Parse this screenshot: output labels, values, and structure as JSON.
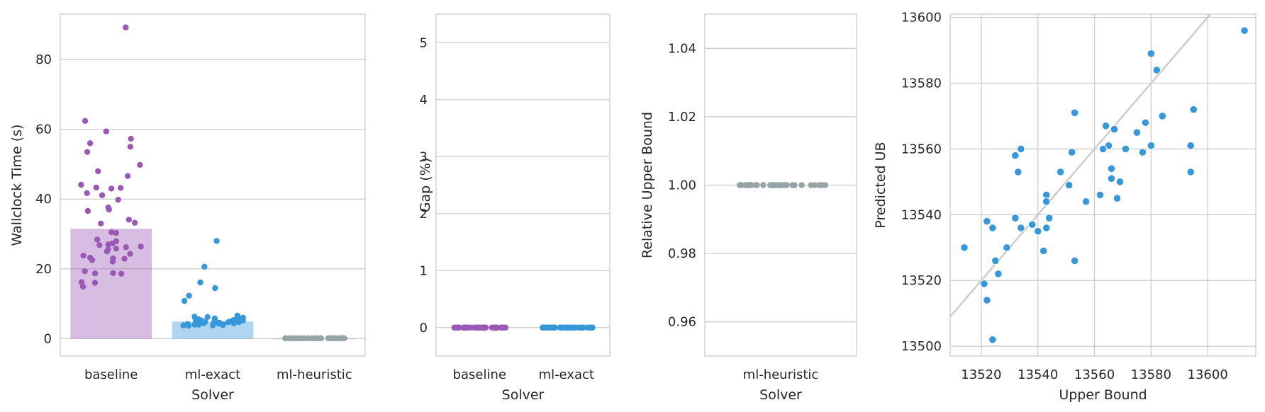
{
  "colors": {
    "baseline": "#9b59b6",
    "ml_exact": "#3498db",
    "ml_heuristic": "#95a5a6",
    "grid": "#cccccc",
    "identity_line": "#cccccc"
  },
  "chart_data": [
    {
      "type": "bar",
      "overlay": "strip",
      "categories": [
        "baseline",
        "ml-exact",
        "ml-heuristic"
      ],
      "bar_values": [
        31.5,
        4.9,
        0.1
      ],
      "xlabel": "Solver",
      "ylabel": "Wallclock Time (s)",
      "ylim": [
        -5,
        93
      ],
      "yticks": [
        0,
        20,
        40,
        60,
        80
      ],
      "grid": "horizontal",
      "points": [
        [
          89.2,
          62.4,
          59.4,
          57.3,
          56.0,
          55.0,
          53.5,
          49.8,
          48.0,
          46.6,
          44.1,
          43.3,
          43.2,
          43.0,
          41.7,
          41.1,
          39.8,
          37.6,
          37.0,
          36.6,
          34.1,
          33.2,
          33.0,
          30.5,
          30.3,
          28.4,
          27.9,
          27.3,
          27.0,
          26.8,
          26.4,
          26.2,
          25.8,
          25.6,
          25.0,
          24.3,
          23.8,
          23.2,
          23.0,
          22.9,
          22.5,
          22.1,
          19.3,
          18.8,
          18.7,
          18.6,
          16.2,
          16.0,
          14.9
        ],
        [
          28.0,
          20.6,
          16.1,
          14.5,
          12.3,
          10.8,
          6.6,
          6.3,
          6.2,
          6.0,
          5.9,
          5.8,
          5.7,
          5.6,
          5.5,
          5.4,
          5.3,
          5.2,
          5.1,
          5.0,
          4.9,
          4.8,
          4.7,
          4.7,
          4.6,
          4.5,
          4.4,
          4.4,
          4.3,
          4.2,
          4.1,
          4.0,
          4.0,
          3.9,
          3.8,
          3.8,
          3.7,
          4.5,
          4.9,
          5.2
        ],
        [
          0.1,
          0.1,
          0.1,
          0.1,
          0.1,
          0.1,
          0.1,
          0.1,
          0.1,
          0.1,
          0.1,
          0.1,
          0.1,
          0.1,
          0.1,
          0.1,
          0.1,
          0.1,
          0.1,
          0.1,
          0.1,
          0.1,
          0.1,
          0.1,
          0.1,
          0.1,
          0.1,
          0.1,
          0.1,
          0.1,
          0.1,
          0.1,
          0.1,
          0.1,
          0.1,
          0.1,
          0.1,
          0.1,
          0.1,
          0.1
        ]
      ]
    },
    {
      "type": "strip",
      "categories": [
        "baseline",
        "ml-exact"
      ],
      "xlabel": "Solver",
      "ylabel": "Gap (%)",
      "ylim": [
        -0.5,
        5.5
      ],
      "yticks": [
        0,
        1,
        2,
        3,
        4,
        5
      ],
      "grid": "horizontal",
      "points": [
        [
          0,
          0,
          0,
          0,
          0,
          0,
          0,
          0,
          0,
          0,
          0,
          0,
          0,
          0,
          0,
          0,
          0,
          0,
          0,
          0,
          0,
          0,
          0,
          0,
          0,
          0,
          0,
          0,
          0,
          0,
          0,
          0,
          0,
          0,
          0,
          0,
          0,
          0,
          0,
          0
        ],
        [
          0,
          0,
          0,
          0,
          0,
          0,
          0,
          0,
          0,
          0,
          0,
          0,
          0,
          0,
          0,
          0,
          0,
          0,
          0,
          0,
          0,
          0,
          0,
          0,
          0,
          0,
          0,
          0,
          0,
          0,
          0,
          0,
          0,
          0,
          0,
          0,
          0,
          0,
          0,
          0
        ]
      ]
    },
    {
      "type": "strip",
      "categories": [
        "ml-heuristic"
      ],
      "xlabel": "Solver",
      "ylabel": "Relative Upper Bound",
      "ylim": [
        0.95,
        1.05
      ],
      "yticks": [
        0.96,
        0.98,
        1.0,
        1.02,
        1.04
      ],
      "ytick_labels": [
        "0.96",
        "0.98",
        "1.00",
        "1.02",
        "1.04"
      ],
      "grid": "horizontal",
      "points": [
        [
          1,
          1,
          1,
          1,
          1,
          1,
          1,
          1,
          1,
          1,
          1,
          1,
          1,
          1,
          1,
          1,
          1,
          1,
          1,
          1,
          1,
          1,
          1,
          1,
          1,
          1,
          1,
          1,
          1,
          1,
          1,
          1,
          1,
          1,
          1,
          1,
          1,
          1,
          1,
          1
        ]
      ]
    },
    {
      "type": "scatter",
      "xlabel": "Upper Bound",
      "ylabel": "Predicted UB",
      "xlim": [
        13509,
        13617
      ],
      "ylim": [
        13497,
        13601
      ],
      "xticks": [
        13520,
        13540,
        13560,
        13580,
        13600
      ],
      "yticks": [
        13500,
        13520,
        13540,
        13560,
        13580,
        13600
      ],
      "grid": "both",
      "identity_line": true,
      "x": [
        13613,
        13580,
        13582,
        13595,
        13584,
        13553,
        13564,
        13578,
        13575,
        13580,
        13567,
        13565,
        13571,
        13577,
        13594,
        13532,
        13534,
        13552,
        13563,
        13566,
        13548,
        13569,
        13533,
        13594,
        13566,
        13568,
        13551,
        13562,
        13543,
        13557,
        13543,
        13532,
        13544,
        13522,
        13538,
        13534,
        13524,
        13540,
        13543,
        13529,
        13514,
        13542,
        13553,
        13525,
        13526,
        13521,
        13522,
        13524
      ],
      "y": [
        13596,
        13589,
        13584,
        13572,
        13570,
        13571,
        13567,
        13568,
        13565,
        13561,
        13566,
        13561,
        13560,
        13559,
        13561,
        13558,
        13560,
        13559,
        13560,
        13554,
        13553,
        13550,
        13553,
        13553,
        13551,
        13545,
        13549,
        13546,
        13546,
        13544,
        13544,
        13539,
        13539,
        13538,
        13537,
        13536,
        13536,
        13535,
        13536,
        13530,
        13530,
        13529,
        13526,
        13526,
        13522,
        13519,
        13514,
        13502
      ]
    }
  ]
}
